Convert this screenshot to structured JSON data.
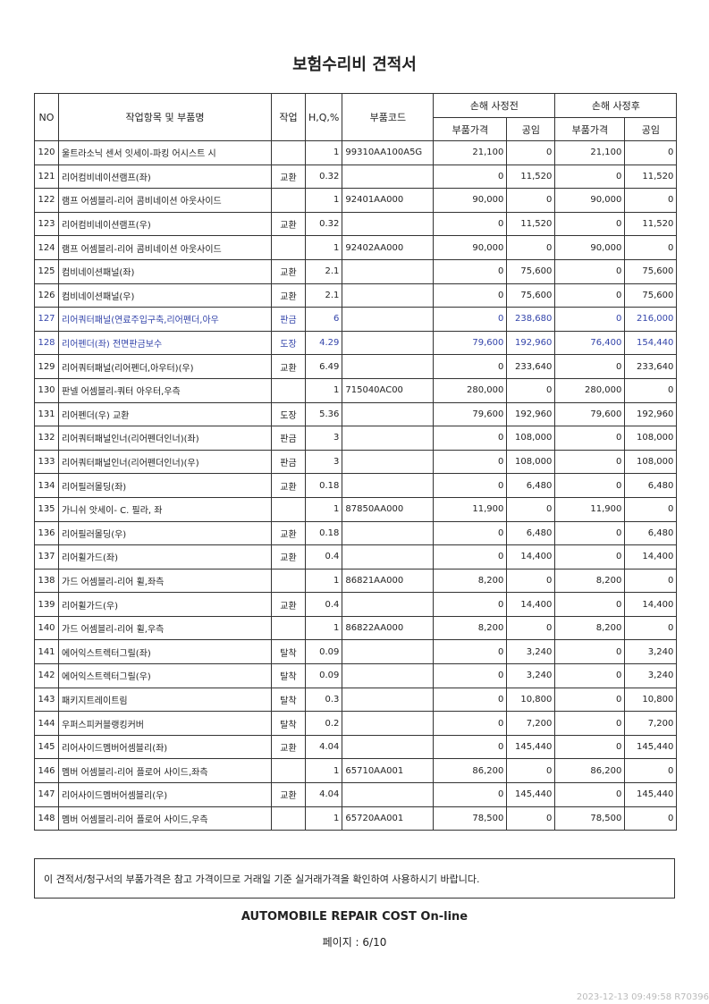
{
  "title": "보험수리비 견적서",
  "headers": {
    "no": "NO",
    "name": "작업항목 및 부품명",
    "work": "작업",
    "hq": "H,Q,%",
    "code": "부품코드",
    "before": "손해 사정전",
    "after": "손해 사정후",
    "price": "부품가격",
    "labor": "공임"
  },
  "rows": [
    [
      "120",
      "울트라소닉 센서 잇세이-파킹 어시스트 시",
      "",
      "1",
      "99310AA100A5G",
      "21,100",
      "0",
      "21,100",
      "0"
    ],
    [
      "121",
      "리어컴비네이션램프(좌)",
      "교환",
      "0.32",
      "",
      "0",
      "11,520",
      "0",
      "11,520"
    ],
    [
      "122",
      "램프 어셈블리-리어 콤비네이션 아웃사이드",
      "",
      "1",
      "92401AA000",
      "90,000",
      "0",
      "90,000",
      "0"
    ],
    [
      "123",
      "리어컴비네이션램프(우)",
      "교환",
      "0.32",
      "",
      "0",
      "11,520",
      "0",
      "11,520"
    ],
    [
      "124",
      "램프 어셈블리-리어 콤비네이션 아웃사이드",
      "",
      "1",
      "92402AA000",
      "90,000",
      "0",
      "90,000",
      "0"
    ],
    [
      "125",
      "컴비네이션패널(좌)",
      "교환",
      "2.1",
      "",
      "0",
      "75,600",
      "0",
      "75,600"
    ],
    [
      "126",
      "컴비네이션패널(우)",
      "교환",
      "2.1",
      "",
      "0",
      "75,600",
      "0",
      "75,600"
    ],
    [
      "127",
      "리어쿼터패널(연료주입구축,리어펜더,아우",
      "판금",
      "6",
      "",
      "0",
      "238,680",
      "0",
      "216,000"
    ],
    [
      "128",
      "리어펜더(좌) 전면판금보수",
      "도장",
      "4.29",
      "",
      "79,600",
      "192,960",
      "76,400",
      "154,440"
    ],
    [
      "129",
      "리어쿼터패널(리어펜더,아우터)(우)",
      "교환",
      "6.49",
      "",
      "0",
      "233,640",
      "0",
      "233,640"
    ],
    [
      "130",
      "판넬 어셈블리-쿼터 아우터,우측",
      "",
      "1",
      "715040AC00",
      "280,000",
      "0",
      "280,000",
      "0"
    ],
    [
      "131",
      "리어펜더(우) 교환",
      "도장",
      "5.36",
      "",
      "79,600",
      "192,960",
      "79,600",
      "192,960"
    ],
    [
      "132",
      "리어쿼터패널인너(리어펜더인너)(좌)",
      "판금",
      "3",
      "",
      "0",
      "108,000",
      "0",
      "108,000"
    ],
    [
      "133",
      "리어쿼터패널인너(리어펜더인너)(우)",
      "판금",
      "3",
      "",
      "0",
      "108,000",
      "0",
      "108,000"
    ],
    [
      "134",
      "리어필러몰딩(좌)",
      "교환",
      "0.18",
      "",
      "0",
      "6,480",
      "0",
      "6,480"
    ],
    [
      "135",
      "가니쉬 앗세이- C. 필라, 좌",
      "",
      "1",
      "87850AA000",
      "11,900",
      "0",
      "11,900",
      "0"
    ],
    [
      "136",
      "리어필러몰딩(우)",
      "교환",
      "0.18",
      "",
      "0",
      "6,480",
      "0",
      "6,480"
    ],
    [
      "137",
      "리어휠가드(좌)",
      "교환",
      "0.4",
      "",
      "0",
      "14,400",
      "0",
      "14,400"
    ],
    [
      "138",
      "가드 어셈블리-리어 휠,좌측",
      "",
      "1",
      "86821AA000",
      "8,200",
      "0",
      "8,200",
      "0"
    ],
    [
      "139",
      "리어휠가드(우)",
      "교환",
      "0.4",
      "",
      "0",
      "14,400",
      "0",
      "14,400"
    ],
    [
      "140",
      "가드 어셈블리-리어 휠,우측",
      "",
      "1",
      "86822AA000",
      "8,200",
      "0",
      "8,200",
      "0"
    ],
    [
      "141",
      "에어익스트렉터그릴(좌)",
      "탈착",
      "0.09",
      "",
      "0",
      "3,240",
      "0",
      "3,240"
    ],
    [
      "142",
      "에어익스트렉터그릴(우)",
      "탈착",
      "0.09",
      "",
      "0",
      "3,240",
      "0",
      "3,240"
    ],
    [
      "143",
      "패키지트레이트림",
      "탈착",
      "0.3",
      "",
      "0",
      "10,800",
      "0",
      "10,800"
    ],
    [
      "144",
      "우퍼스피커블랭킹커버",
      "탈착",
      "0.2",
      "",
      "0",
      "7,200",
      "0",
      "7,200"
    ],
    [
      "145",
      "리어사이드멤버어셈블리(좌)",
      "교환",
      "4.04",
      "",
      "0",
      "145,440",
      "0",
      "145,440"
    ],
    [
      "146",
      "멤버 어셈블리-리어 플로어 사이드,좌측",
      "",
      "1",
      "65710AA001",
      "86,200",
      "0",
      "86,200",
      "0"
    ],
    [
      "147",
      "리어사이드멤버어셈블리(우)",
      "교환",
      "4.04",
      "",
      "0",
      "145,440",
      "0",
      "145,440"
    ],
    [
      "148",
      "멤버 어셈블리-리어 플로어 사이드,우측",
      "",
      "1",
      "65720AA001",
      "78,500",
      "0",
      "78,500",
      "0"
    ]
  ],
  "highlighted_rows": [
    "127",
    "128"
  ],
  "highlight_color": "#3344aa",
  "note": "이 견적서/청구서의 부품가격은 참고 가격이므로 거래일 기준 실거래가격을 확인하여 사용하시기 바랍니다.",
  "footer_title": "AUTOMOBILE REPAIR COST On-line",
  "page": "페이지 : 6/10",
  "stamp": "2023-12-13 09:49:58 R70396"
}
